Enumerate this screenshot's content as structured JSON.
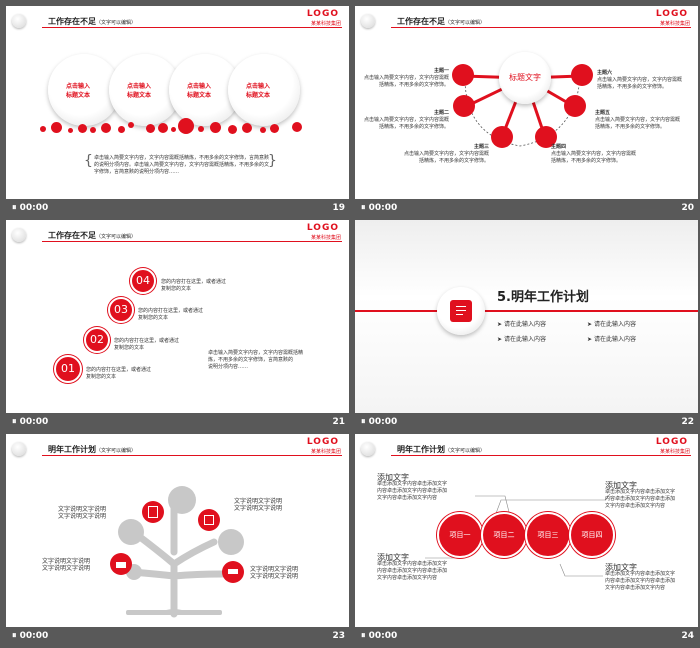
{
  "common": {
    "time": "00:00",
    "logo": "LOGO",
    "logo_sub": "某某科技集团",
    "title_note": "（文字可以编辑）"
  },
  "slide19": {
    "number": "19",
    "title": "工作存在不足",
    "bubbles": [
      {
        "line1": "点击输入",
        "line2": "标题文本"
      },
      {
        "line1": "点击输入",
        "line2": "标题文本"
      },
      {
        "line1": "点击输入",
        "line2": "标题文本"
      },
      {
        "line1": "点击输入",
        "line2": "标题文本"
      }
    ],
    "desc": [
      "卓击输入简要文字内容，文字内容需概括精炼，不用多余的文字修饰，言简意赅",
      "的说明分项内容。卓击输入简要文字内容，文字内容需概括精炼，不用多余的文",
      "字修饰，言简意赅的说明分项内容……"
    ]
  },
  "slide20": {
    "number": "20",
    "center": "标题文字",
    "topics": [
      {
        "name": "主题一",
        "text": [
          "点击输入简要文字内容，文字内容需概",
          "括精炼，不用多余的文字修饰。"
        ]
      },
      {
        "name": "主题二",
        "text": [
          "点击输入简要文字内容，文字内容需概",
          "括精炼，不用多余的文字修饰。"
        ]
      },
      {
        "name": "主题三",
        "text": [
          "点击输入简要文字内容，文字内容需概",
          "括精炼，不用多余的文字修饰。"
        ]
      },
      {
        "name": "主题四",
        "text": [
          "点击输入简要文字内容，文字内容需概",
          "括精炼，不用多余的文字修饰。"
        ]
      },
      {
        "name": "主题五",
        "text": [
          "点击输入简要文字内容，文字内容需概",
          "括精炼，不用多余的文字修饰。"
        ]
      },
      {
        "name": "主题六",
        "text": [
          "点击输入简要文字内容，文字内容需概",
          "括精炼，不用多余的文字修饰。"
        ]
      }
    ]
  },
  "slide21": {
    "number": "21",
    "title": "工作存在不足",
    "steps": [
      {
        "num": "04",
        "text": [
          "您的内容打在这里，或者通过",
          "复制您的文本"
        ]
      },
      {
        "num": "03",
        "text": [
          "您的内容打在这里，或者通过",
          "复制您的文本"
        ]
      },
      {
        "num": "02",
        "text": [
          "您的内容打在这里，或者通过",
          "复制您的文本"
        ]
      },
      {
        "num": "01",
        "text": [
          "您的内容打在这里，或者通过",
          "复制您的文本"
        ]
      }
    ],
    "desc": [
      "卓击输入简要文字内容，文字内容需概括精",
      "炼，不用多余的文字修饰，言简意赅的",
      "说明分项内容……"
    ]
  },
  "slide22": {
    "number": "22",
    "heading": "5.明年工作计划",
    "items": [
      "请在此输入内容",
      "请在此输入内容",
      "请在此输入内容",
      "请在此输入内容"
    ]
  },
  "slide23": {
    "number": "23",
    "title": "明年工作计划",
    "labels": [
      "文字说明文字说明",
      "文字说明文字说明",
      "文字说明文字说明",
      "文字说明文字说明",
      "文字说明文字说明",
      "文字说明文字说明",
      "文字说明文字说明",
      "文字说明文字说明"
    ]
  },
  "slide24": {
    "number": "24",
    "title": "明年工作计划",
    "projects": [
      "项目一",
      "项目二",
      "项目三",
      "项目四"
    ],
    "blocks": [
      {
        "title": "添加文字",
        "text": [
          "卓击添加文字内容卓击添加文字",
          "内容卓击添加文字内容卓击添加",
          "文字内容卓击添加文字内容"
        ]
      },
      {
        "title": "添加文字",
        "text": [
          "卓击添加文字内容卓击添加文字",
          "内容卓击添加文字内容卓击添加",
          "文字内容卓击添加文字内容"
        ]
      },
      {
        "title": "添加文字",
        "text": [
          "卓击添加文字内容卓击添加文字",
          "内容卓击添加文字内容卓击添加",
          "文字内容卓击添加文字内容"
        ]
      },
      {
        "title": "添加文字",
        "text": [
          "卓击添加文字内容卓击添加文字",
          "内容卓击添加文字内容卓击添加",
          "文字内容卓击添加文字内容"
        ]
      }
    ]
  },
  "colors": {
    "accent": "#e0101e",
    "background": "#595959"
  },
  "icons": [
    "pause-icon",
    "document-icon",
    "pen-icon",
    "chart-icon",
    "person-icon"
  ]
}
